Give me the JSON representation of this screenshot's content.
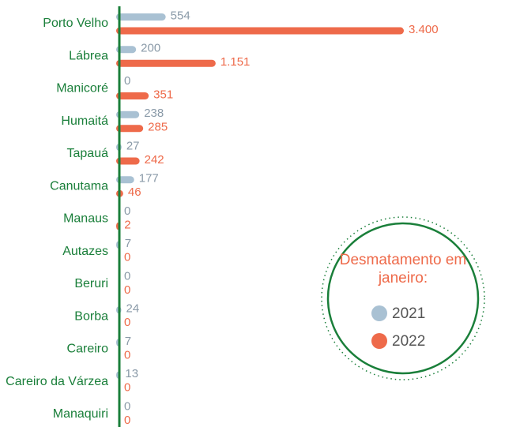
{
  "chart_data": {
    "type": "bar",
    "orientation": "horizontal",
    "categories": [
      "Porto Velho",
      "Lábrea",
      "Manicoré",
      "Humaitá",
      "Tapauá",
      "Canutama",
      "Manaus",
      "Autazes",
      "Beruri",
      "Borba",
      "Careiro",
      "Careiro da Várzea",
      "Manaquiri"
    ],
    "series": [
      {
        "name": "2021",
        "color": "#a9c1d3",
        "values": [
          554,
          200,
          0,
          238,
          27,
          177,
          0,
          7,
          0,
          24,
          7,
          13,
          0
        ]
      },
      {
        "name": "2022",
        "color": "#ee6a4a",
        "values": [
          3400,
          1151,
          351,
          285,
          242,
          46,
          2,
          0,
          0,
          0,
          0,
          0,
          0
        ],
        "value_labels": [
          "3.400",
          "1.151",
          "351",
          "285",
          "242",
          "46",
          "2",
          "0",
          "0",
          "0",
          "0",
          "0",
          "0"
        ]
      }
    ],
    "legend_title": "Desmatamento em janeiro:"
  }
}
